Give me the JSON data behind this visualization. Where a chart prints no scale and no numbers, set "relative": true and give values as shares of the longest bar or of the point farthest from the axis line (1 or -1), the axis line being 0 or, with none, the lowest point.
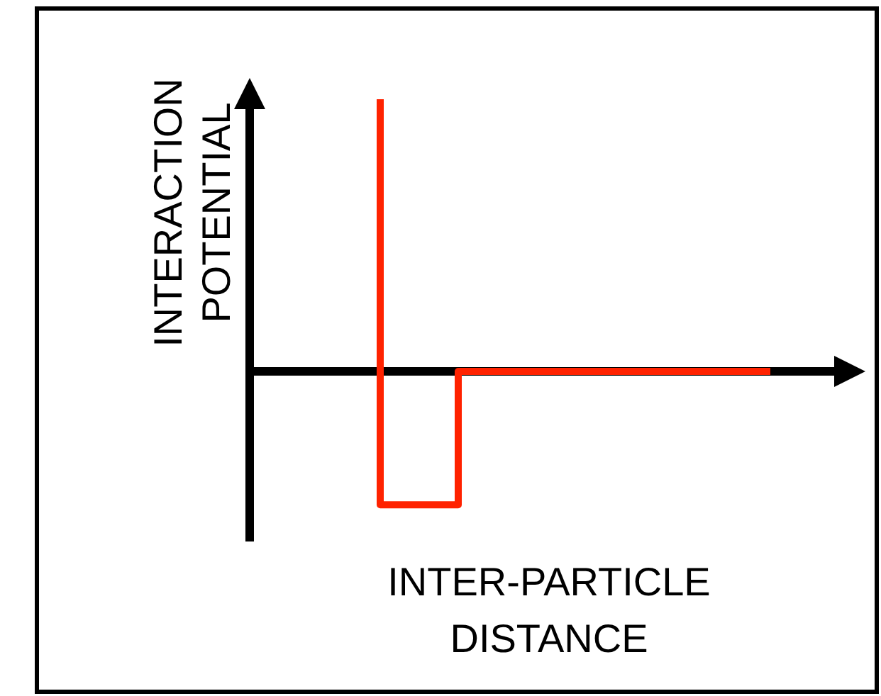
{
  "chart_data": {
    "type": "step",
    "relative": true,
    "xlabel": "INTER-PARTICLE\nDISTANCE",
    "ylabel": "INTERACTION\nPOTENTIAL",
    "categories": [
      null,
      null,
      null,
      null,
      null,
      null
    ],
    "series": [
      {
        "color": "#ff2200",
        "values": [
          1,
          -0.49,
          0,
          0,
          0,
          0
        ]
      }
    ]
  }
}
